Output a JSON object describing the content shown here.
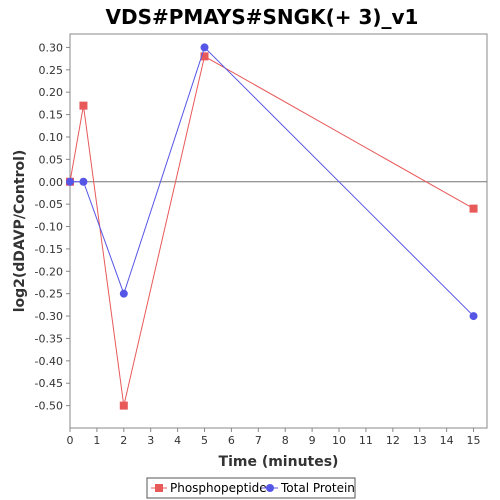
{
  "chart_data": {
    "type": "line",
    "title": "VDS#PMAYS#SNGK(+ 3)_v1",
    "xlabel": "Time (minutes)",
    "ylabel": "log2(dDAVP/Control)",
    "xlim": [
      0,
      15.5
    ],
    "ylim": [
      -0.55,
      0.33
    ],
    "xticks": [
      0,
      1,
      2,
      3,
      4,
      5,
      6,
      7,
      8,
      9,
      10,
      11,
      12,
      13,
      14,
      15
    ],
    "yticks": [
      0.3,
      0.25,
      0.2,
      0.15,
      0.1,
      0.05,
      0.0,
      -0.05,
      -0.1,
      -0.15,
      -0.2,
      -0.25,
      -0.3,
      -0.35,
      -0.4,
      -0.45,
      -0.5
    ],
    "grid": false,
    "zero_line": true,
    "legend_position": "bottom",
    "series": [
      {
        "name": "Phosphopeptide",
        "color": "#e8595a",
        "marker": "square",
        "x": [
          0,
          0.5,
          2,
          5,
          15
        ],
        "y": [
          0.0,
          0.17,
          -0.5,
          0.28,
          -0.06
        ]
      },
      {
        "name": "Total Protein",
        "color": "#5555e6",
        "marker": "circle",
        "x": [
          0,
          0.5,
          2,
          5,
          15
        ],
        "y": [
          0.0,
          0.0,
          -0.25,
          0.3,
          -0.3
        ]
      }
    ]
  }
}
